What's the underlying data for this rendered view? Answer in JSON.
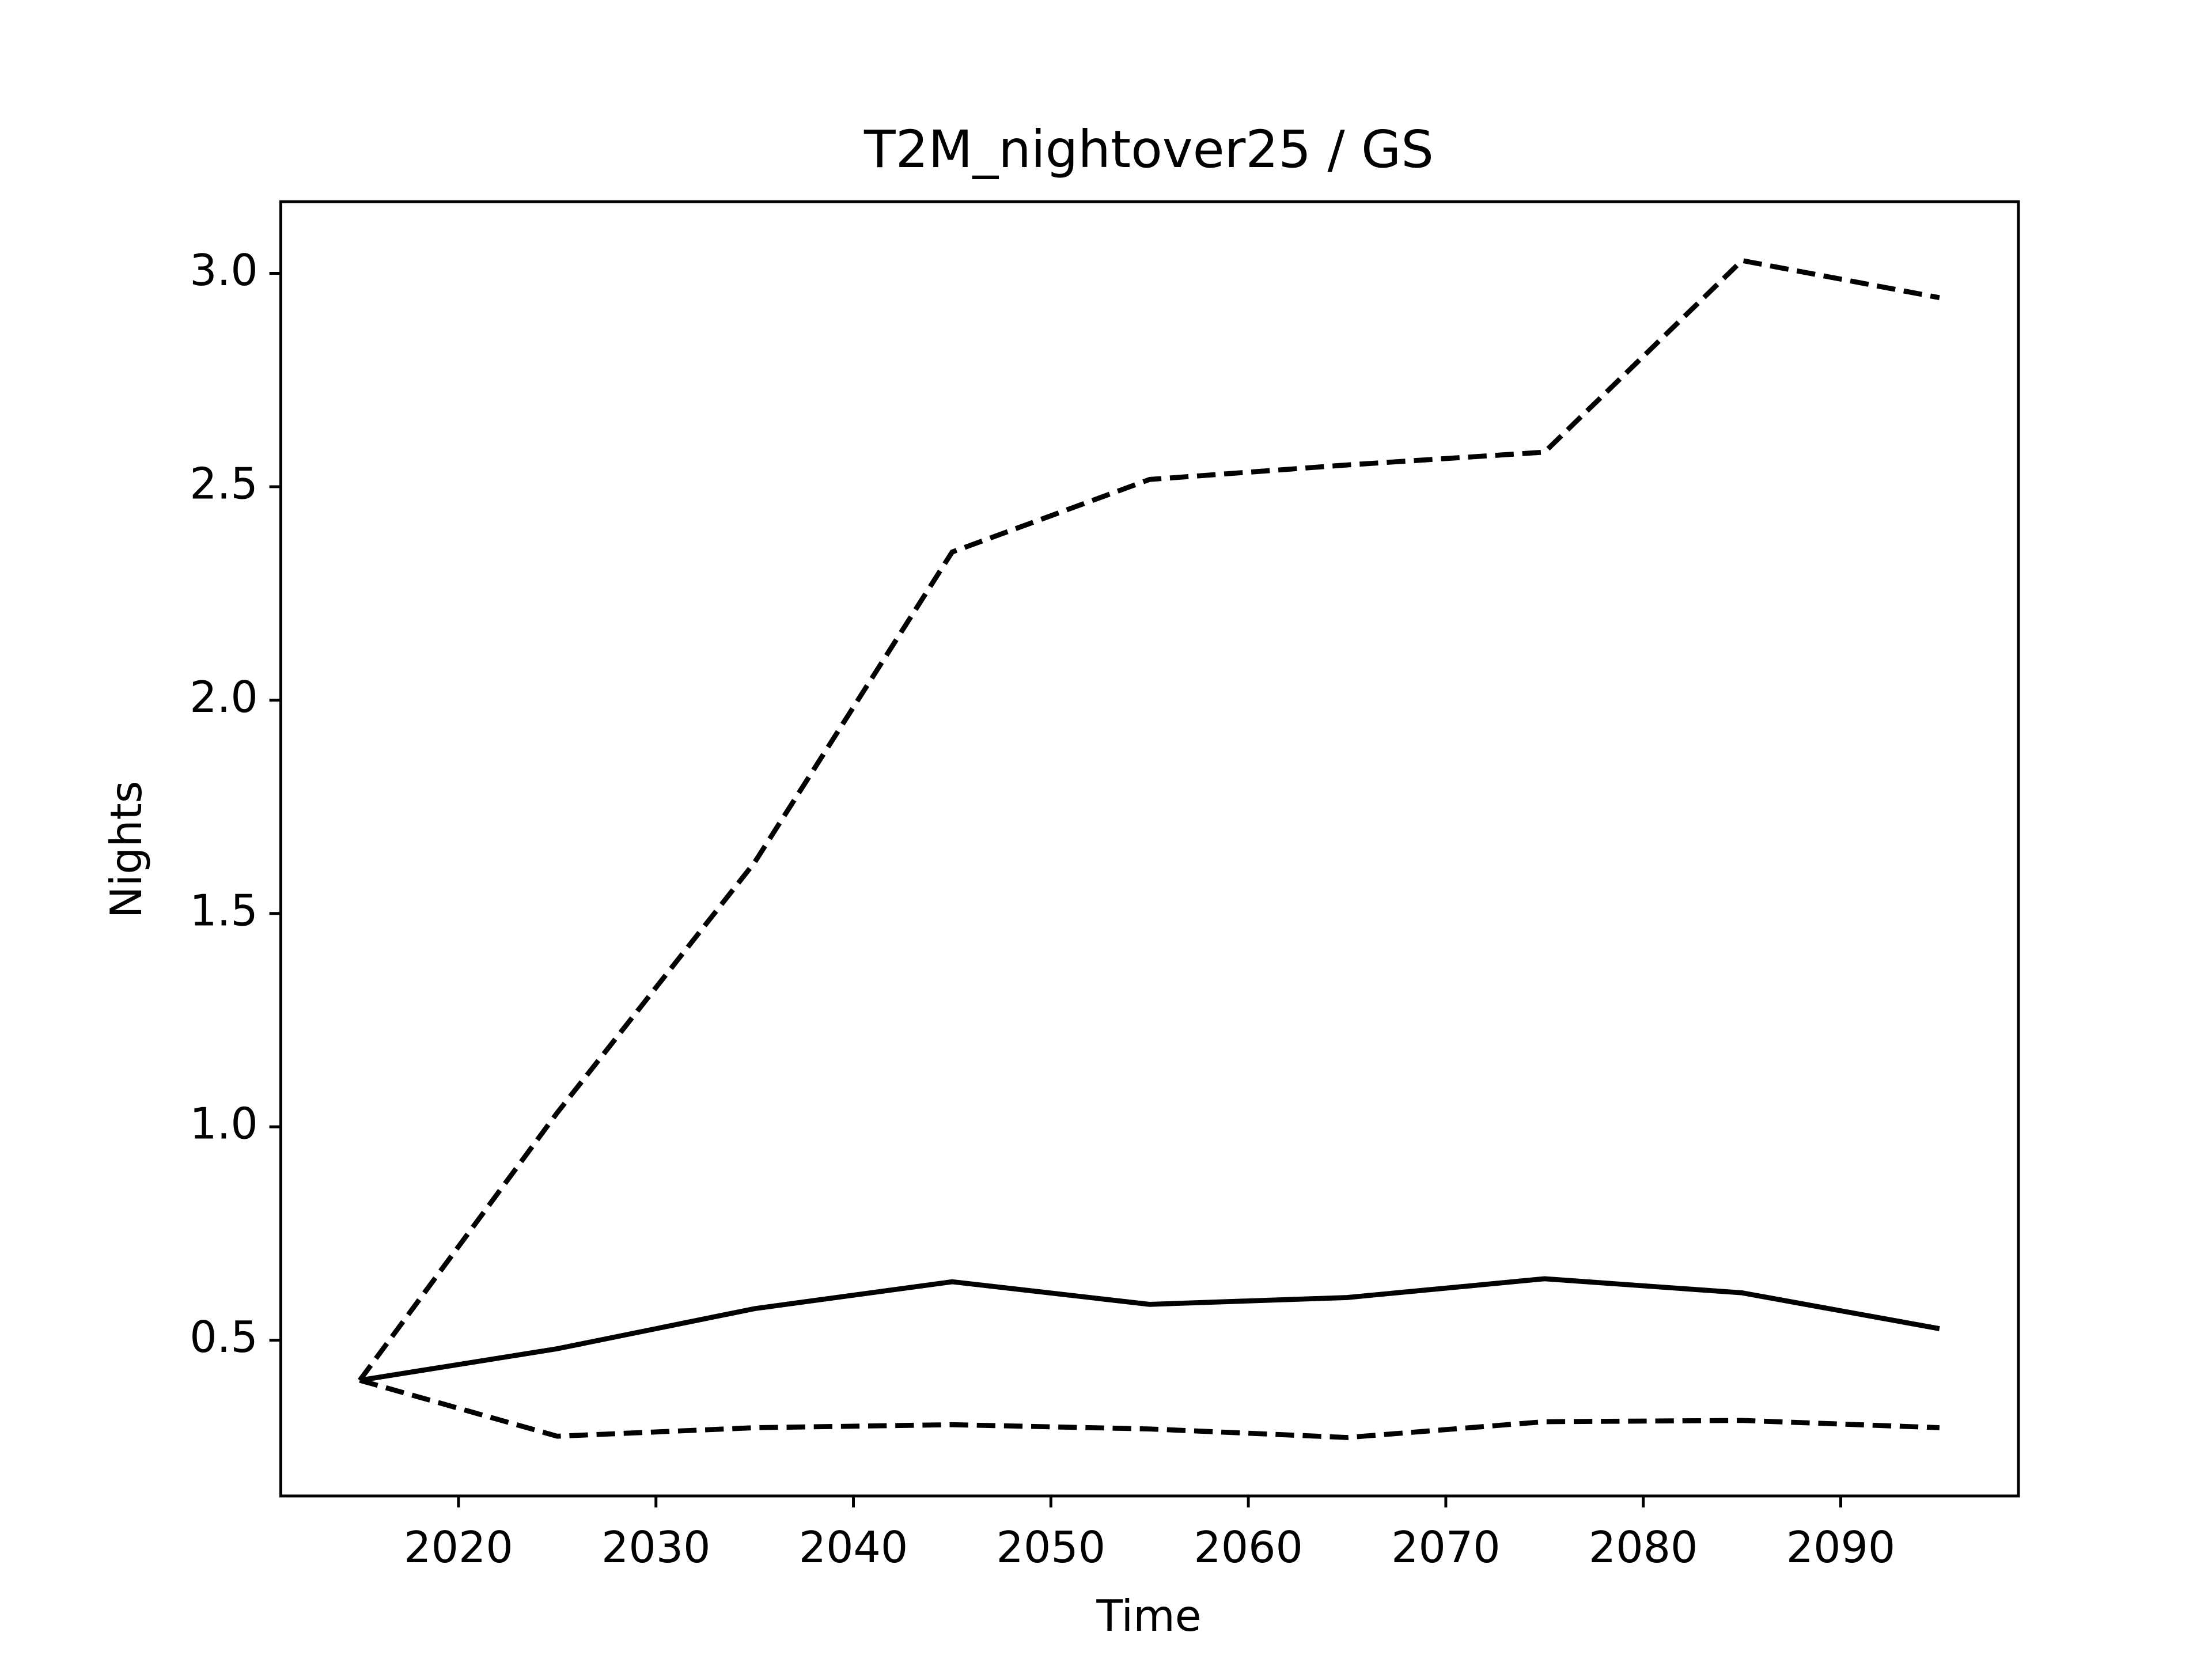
{
  "chart_data": {
    "type": "line",
    "title": "T2M_nightover25 / GS",
    "xlabel": "Time",
    "ylabel": "Nights",
    "x": [
      2015,
      2025,
      2035,
      2045,
      2055,
      2065,
      2075,
      2085,
      2095
    ],
    "series": [
      {
        "color": "#000000",
        "linestyle": "solid",
        "values": [
          0.406,
          0.48,
          0.574,
          0.637,
          0.584,
          0.6,
          0.644,
          0.611,
          0.527
        ]
      },
      {
        "color": "#000000",
        "linestyle": "dashed",
        "values": [
          0.406,
          1.033,
          1.62,
          2.347,
          2.517,
          2.551,
          2.581,
          3.03,
          2.943
        ]
      },
      {
        "color": "#000000",
        "linestyle": "dashed",
        "values": [
          0.406,
          0.275,
          0.295,
          0.302,
          0.292,
          0.272,
          0.309,
          0.312,
          0.295
        ]
      }
    ],
    "xlim": [
      2011,
      2099
    ],
    "ylim": [
      0.135,
      3.168
    ],
    "xticks": [
      2020,
      2030,
      2040,
      2050,
      2060,
      2070,
      2080,
      2090
    ],
    "yticks": [
      {
        "value": 0.5,
        "label": "0.5"
      },
      {
        "value": 1,
        "label": "1.0"
      },
      {
        "value": 1.5,
        "label": "1.5"
      },
      {
        "value": 2,
        "label": "2.0"
      },
      {
        "value": 2.5,
        "label": "2.5"
      },
      {
        "value": 3,
        "label": "3.0"
      }
    ],
    "grid": false
  }
}
